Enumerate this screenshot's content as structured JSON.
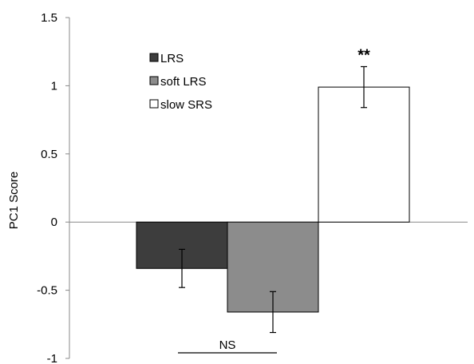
{
  "chart_data": {
    "type": "bar",
    "title": "",
    "xlabel": "",
    "ylabel": "PC1 Score",
    "ylim": [
      -1,
      1.5
    ],
    "yticks": [
      1.5,
      1,
      0.5,
      0,
      -0.5,
      -1
    ],
    "ytick_labels": [
      "1.5",
      "1",
      "0.5",
      "0",
      "-0.5",
      "-1"
    ],
    "grid": false,
    "legend_position": "top-left",
    "series": [
      {
        "name": "LRS",
        "value": -0.34,
        "error": 0.14,
        "color": "#3d3d3d"
      },
      {
        "name": "soft LRS",
        "value": -0.66,
        "error": 0.15,
        "color": "#8c8c8c"
      },
      {
        "name": "slow SRS",
        "value": 0.99,
        "error": 0.15,
        "color": "#ffffff"
      }
    ],
    "annotations": [
      {
        "text": "**",
        "target": "slow SRS"
      },
      {
        "text": "NS",
        "target": "LRS vs soft LRS"
      }
    ]
  }
}
